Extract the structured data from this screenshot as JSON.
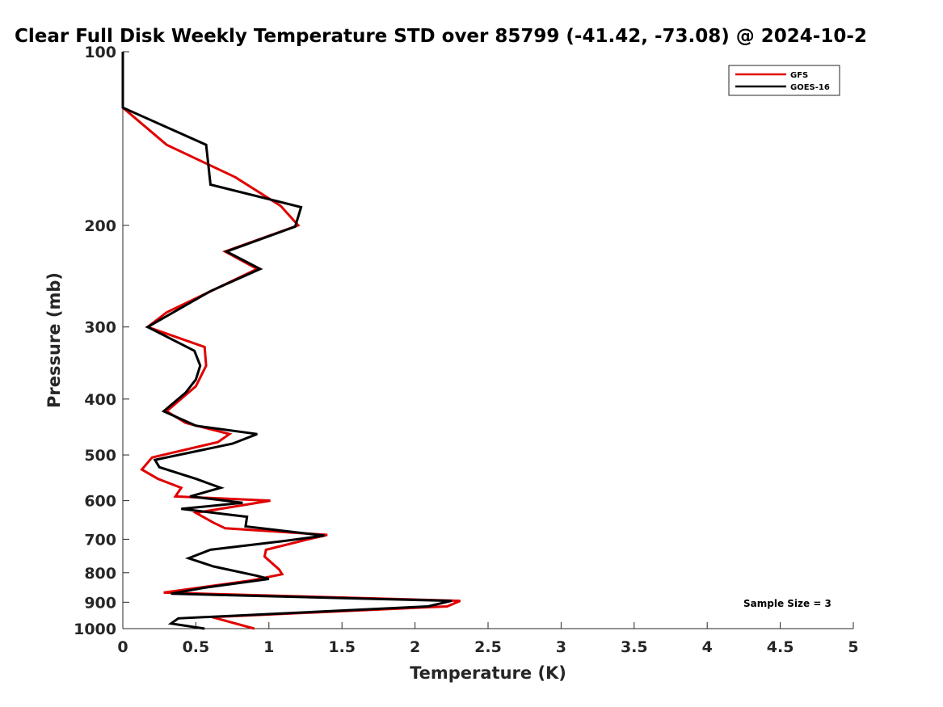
{
  "colors": {
    "gfs": "#e00000",
    "goes": "#000000",
    "axis": "#262626",
    "background": "#ffffff"
  },
  "chart_data": {
    "type": "line",
    "title": "Clear Full Disk Weekly Temperature STD over 85799 (-41.42, -73.08) @ 2024-10-2",
    "xlabel": "Temperature (K)",
    "ylabel": "Pressure (mb)",
    "xlim": [
      0,
      5
    ],
    "ylim": [
      100,
      1000
    ],
    "yscale": "log",
    "y_reversed": true,
    "xticks": [
      "0",
      "0.5",
      "1",
      "1.5",
      "2",
      "2.5",
      "3",
      "3.5",
      "4",
      "4.5",
      "5"
    ],
    "yticks": [
      "100",
      "200",
      "300",
      "400",
      "500",
      "600",
      "700",
      "800",
      "900",
      "1000"
    ],
    "grid": false,
    "legend_position": "top-right",
    "annotation": "Sample Size = 3",
    "series": [
      {
        "name": "GFS",
        "color": "#e00000",
        "points": [
          [
            0,
            100
          ],
          [
            0,
            125
          ],
          [
            0.3,
            145
          ],
          [
            0.77,
            165
          ],
          [
            1.08,
            185
          ],
          [
            1.2,
            200
          ],
          [
            0.7,
            222
          ],
          [
            0.92,
            238
          ],
          [
            0.3,
            283
          ],
          [
            0.17,
            300
          ],
          [
            0.56,
            325
          ],
          [
            0.57,
            350
          ],
          [
            0.5,
            380
          ],
          [
            0.3,
            420
          ],
          [
            0.43,
            440
          ],
          [
            0.73,
            460
          ],
          [
            0.65,
            475
          ],
          [
            0.2,
            505
          ],
          [
            0.13,
            530
          ],
          [
            0.24,
            550
          ],
          [
            0.4,
            570
          ],
          [
            0.36,
            590
          ],
          [
            1.01,
            600
          ],
          [
            0.5,
            630
          ],
          [
            0.62,
            655
          ],
          [
            0.7,
            670
          ],
          [
            1.4,
            688
          ],
          [
            1.27,
            700
          ],
          [
            0.98,
            730
          ],
          [
            0.97,
            750
          ],
          [
            1.07,
            790
          ],
          [
            1.09,
            805
          ],
          [
            0.88,
            825
          ],
          [
            0.28,
            866
          ],
          [
            2.31,
            895
          ],
          [
            2.22,
            915
          ],
          [
            0.61,
            955
          ],
          [
            0.9,
            1000
          ]
        ]
      },
      {
        "name": "GOES-16",
        "color": "#000000",
        "points": [
          [
            0,
            100
          ],
          [
            0,
            125
          ],
          [
            0.57,
            145
          ],
          [
            0.6,
            170
          ],
          [
            1.22,
            186
          ],
          [
            1.18,
            201
          ],
          [
            0.71,
            222
          ],
          [
            0.94,
            238
          ],
          [
            0.6,
            260
          ],
          [
            0.17,
            300
          ],
          [
            0.49,
            330
          ],
          [
            0.53,
            350
          ],
          [
            0.5,
            370
          ],
          [
            0.43,
            390
          ],
          [
            0.28,
            420
          ],
          [
            0.5,
            445
          ],
          [
            0.92,
            460
          ],
          [
            0.75,
            478
          ],
          [
            0.22,
            510
          ],
          [
            0.25,
            525
          ],
          [
            0.5,
            550
          ],
          [
            0.67,
            570
          ],
          [
            0.46,
            590
          ],
          [
            0.82,
            605
          ],
          [
            0.4,
            620
          ],
          [
            0.85,
            640
          ],
          [
            0.84,
            665
          ],
          [
            1.38,
            690
          ],
          [
            1.1,
            705
          ],
          [
            0.6,
            730
          ],
          [
            0.45,
            755
          ],
          [
            0.62,
            780
          ],
          [
            0.92,
            810
          ],
          [
            1.0,
            820
          ],
          [
            0.55,
            850
          ],
          [
            0.33,
            870
          ],
          [
            2.25,
            895
          ],
          [
            2.09,
            915
          ],
          [
            0.38,
            960
          ],
          [
            0.33,
            980
          ],
          [
            0.56,
            1000
          ]
        ]
      }
    ]
  }
}
